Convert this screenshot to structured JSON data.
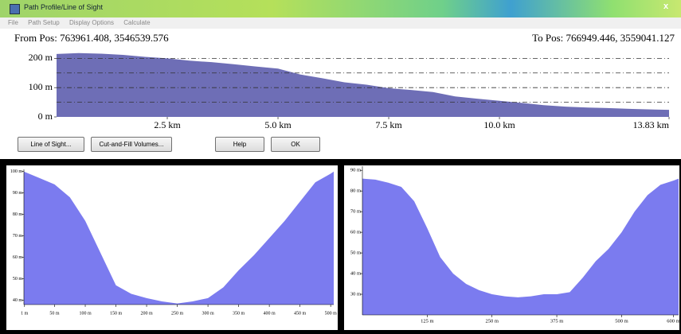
{
  "window": {
    "title": "Path Profile/Line of Sight",
    "close": "x",
    "menu": [
      "File",
      "Path Setup",
      "Display Options",
      "Calculate"
    ],
    "from_pos": "From Pos: 763961.408, 3546539.576",
    "to_pos": "To Pos: 766949.446, 3559041.127",
    "buttons": [
      "Line of Sight...",
      "Cut-and-Fill Volumes...",
      "Help",
      "OK"
    ]
  },
  "chart_data": [
    {
      "type": "area",
      "color": "#6e6eb6",
      "x": [
        0,
        0.5,
        1,
        1.5,
        2,
        2.5,
        3,
        3.5,
        4,
        4.5,
        5,
        5.5,
        6,
        6.5,
        7,
        7.5,
        8,
        8.5,
        9,
        9.5,
        10,
        10.5,
        11,
        11.5,
        12,
        12.5,
        13,
        13.5,
        13.83
      ],
      "values": [
        215,
        218,
        216,
        212,
        205,
        200,
        192,
        187,
        180,
        172,
        165,
        145,
        132,
        118,
        110,
        98,
        92,
        85,
        70,
        62,
        55,
        48,
        40,
        35,
        32,
        30,
        27,
        25,
        24
      ],
      "xlim": [
        0,
        13.83
      ],
      "ylim": [
        0,
        220
      ],
      "xticks": [
        {
          "value": 2.5,
          "label": "2.5 km"
        },
        {
          "value": 5.0,
          "label": "5.0 km"
        },
        {
          "value": 7.5,
          "label": "7.5 km"
        },
        {
          "value": 10.0,
          "label": "10.0 km"
        },
        {
          "value": 13.83,
          "label": "13.83 km"
        }
      ],
      "yticks": [
        {
          "value": 0,
          "label": "0 m"
        },
        {
          "value": 100,
          "label": "100 m"
        },
        {
          "value": 200,
          "label": "200 m"
        }
      ],
      "reference_lines": [
        50,
        100,
        150,
        200
      ]
    },
    {
      "type": "area",
      "color": "#7b7bef",
      "x": [
        0,
        25,
        50,
        75,
        100,
        125,
        150,
        175,
        200,
        225,
        250,
        275,
        300,
        325,
        350,
        375,
        400,
        425,
        450,
        475,
        500,
        505
      ],
      "values": [
        100,
        97,
        94,
        88,
        77,
        62,
        47,
        43,
        41,
        39.5,
        38.5,
        39.5,
        41,
        46,
        54,
        61,
        69,
        77,
        86,
        95,
        99,
        100
      ],
      "xlim": [
        0,
        505
      ],
      "ylim": [
        38,
        101
      ],
      "xticks": [
        {
          "value": 1,
          "label": "1 m"
        },
        {
          "value": 50,
          "label": "50 m"
        },
        {
          "value": 100,
          "label": "100 m"
        },
        {
          "value": 150,
          "label": "150 m"
        },
        {
          "value": 200,
          "label": "200 m"
        },
        {
          "value": 250,
          "label": "250 m"
        },
        {
          "value": 300,
          "label": "300 m"
        },
        {
          "value": 350,
          "label": "350 m"
        },
        {
          "value": 400,
          "label": "400 m"
        },
        {
          "value": 450,
          "label": "450 m"
        },
        {
          "value": 500,
          "label": "500 m"
        }
      ],
      "yticks": [
        {
          "value": 40,
          "label": "40 m"
        },
        {
          "value": 50,
          "label": "50 m"
        },
        {
          "value": 60,
          "label": "60 m"
        },
        {
          "value": 70,
          "label": "70 m"
        },
        {
          "value": 80,
          "label": "80 m"
        },
        {
          "value": 90,
          "label": "90 m"
        },
        {
          "value": 100,
          "label": "100 m"
        }
      ]
    },
    {
      "type": "area",
      "color": "#7b7bef",
      "x": [
        0,
        25,
        50,
        75,
        100,
        125,
        150,
        175,
        200,
        225,
        250,
        275,
        300,
        325,
        350,
        375,
        400,
        425,
        450,
        475,
        500,
        525,
        550,
        575,
        600,
        610
      ],
      "values": [
        86,
        85.5,
        84,
        82,
        75,
        62,
        48,
        40,
        35,
        32,
        30,
        29,
        28.5,
        29,
        30,
        30,
        31,
        38,
        46,
        52,
        60,
        70,
        78,
        83,
        85,
        86
      ],
      "xlim": [
        0,
        610
      ],
      "ylim": [
        20,
        92
      ],
      "xticks": [
        {
          "value": 125,
          "label": "125 m"
        },
        {
          "value": 250,
          "label": "250 m"
        },
        {
          "value": 375,
          "label": "375 m"
        },
        {
          "value": 500,
          "label": "500 m"
        },
        {
          "value": 600,
          "label": "600 m"
        }
      ],
      "yticks": [
        {
          "value": 30,
          "label": "30 m"
        },
        {
          "value": 40,
          "label": "40 m"
        },
        {
          "value": 50,
          "label": "50 m"
        },
        {
          "value": 60,
          "label": "60 m"
        },
        {
          "value": 70,
          "label": "70 m"
        },
        {
          "value": 80,
          "label": "80 m"
        },
        {
          "value": 90,
          "label": "90 m"
        }
      ]
    }
  ]
}
